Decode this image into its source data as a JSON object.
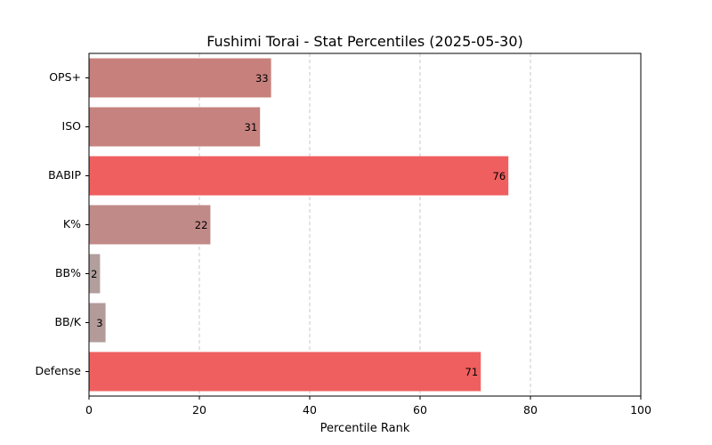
{
  "chart_data": {
    "type": "bar",
    "orientation": "horizontal",
    "title": "Fushimi Torai - Stat Percentiles (2025-05-30)",
    "xlabel": "Percentile Rank",
    "ylabel": "",
    "xlim": [
      0,
      100
    ],
    "x_ticks": [
      0,
      20,
      40,
      60,
      80,
      100
    ],
    "grid": "x, dashed",
    "categories": [
      "OPS+",
      "ISO",
      "BABIP",
      "K%",
      "BB%",
      "BB/K",
      "Defense"
    ],
    "values": [
      33,
      31,
      76,
      22,
      2,
      3,
      71
    ],
    "colors": [
      "#c8807d",
      "#c6827f",
      "#ef5f5f",
      "#c08a88",
      "#b19e9d",
      "#b39b9a",
      "#ef5f5f"
    ]
  }
}
